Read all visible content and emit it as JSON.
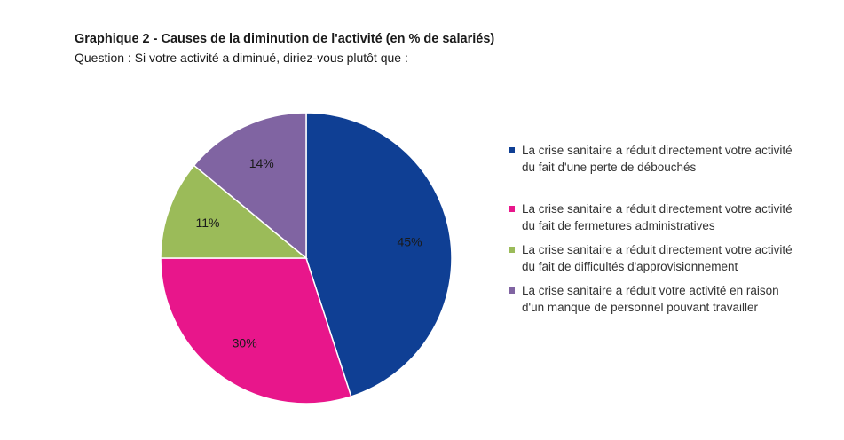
{
  "header": {
    "title": "Graphique 2 - Causes de la diminution de l'activité (en % de salariés)",
    "subtitle": "Question : Si votre activité a diminué, diriez-vous plutôt que :"
  },
  "chart_data": {
    "type": "pie",
    "title": "Graphique 2 - Causes de la diminution de l'activité (en % de salariés)",
    "legend_position": "right",
    "slices": [
      {
        "label": "La crise sanitaire a réduit directement votre activité du fait d'une perte de débouchés",
        "value": 45,
        "display": "45%",
        "color": "#0f3f94"
      },
      {
        "label": "La crise sanitaire a réduit directement votre activité du fait de fermetures administratives",
        "value": 30,
        "display": "30%",
        "color": "#e8168b"
      },
      {
        "label": "La crise sanitaire a réduit directement votre activité du fait de difficultés d'approvisionnement",
        "value": 11,
        "display": "11%",
        "color": "#9bbb59"
      },
      {
        "label": "La crise sanitaire a réduit votre activité en raison d'un manque de personnel pouvant travailler",
        "value": 14,
        "display": "14%",
        "color": "#8064a2"
      }
    ]
  }
}
